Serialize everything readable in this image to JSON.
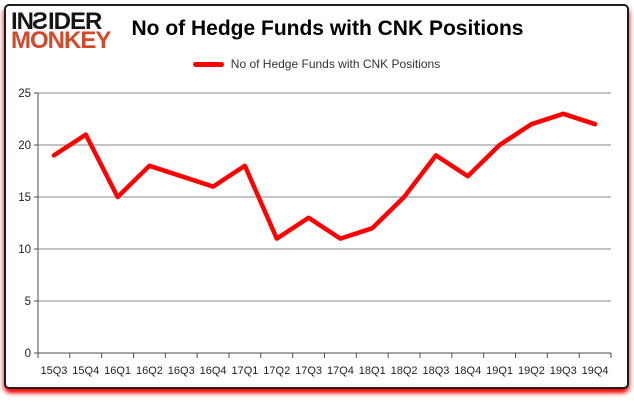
{
  "logo": {
    "line1": "INSIDER",
    "line2": "MONKEY",
    "accent_color": "#d14a2b"
  },
  "header": {
    "title": "No of Hedge Funds with CNK Positions"
  },
  "legend": {
    "label": "No of Hedge Funds with CNK Positions",
    "swatch_color": "#fd0202"
  },
  "chart_data": {
    "type": "line",
    "title": "No of Hedge Funds with CNK Positions",
    "series_name": "No of Hedge Funds with CNK Positions",
    "categories": [
      "15Q3",
      "15Q4",
      "16Q1",
      "16Q2",
      "16Q3",
      "16Q4",
      "17Q1",
      "17Q2",
      "17Q3",
      "17Q4",
      "18Q1",
      "18Q2",
      "18Q3",
      "18Q4",
      "19Q1",
      "19Q2",
      "19Q3",
      "19Q4"
    ],
    "values": [
      19,
      21,
      15,
      18,
      17,
      16,
      18,
      11,
      13,
      11,
      12,
      15,
      19,
      17,
      20,
      22,
      23,
      22
    ],
    "ylim": [
      0,
      25
    ],
    "yticks": [
      0,
      5,
      10,
      15,
      20,
      25
    ],
    "grid": "on",
    "legend_position": "top",
    "line_color": "#fd0202",
    "grid_color": "#8a8a8a",
    "axis_color": "#4d4d4d",
    "text_color": "#1f1f1f"
  }
}
